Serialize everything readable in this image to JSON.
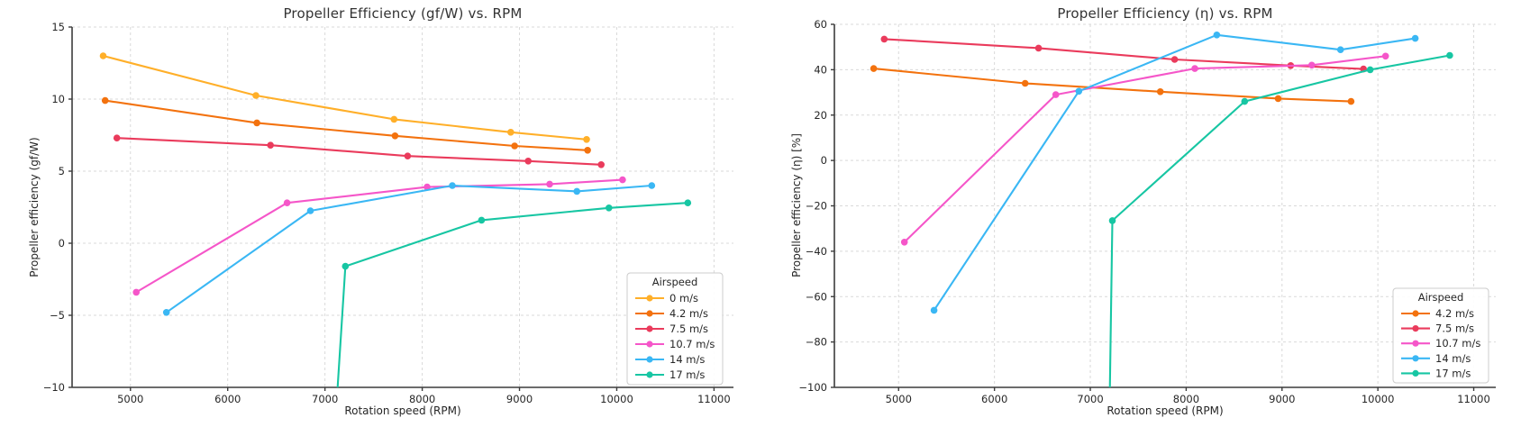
{
  "figure": {
    "background": "#ffffff",
    "grid_color": "#d9d9d9",
    "spine_color": "#3c3c3c",
    "text_color": "#262626"
  },
  "chart_data": [
    {
      "type": "line",
      "title": "Propeller Efficiency (gf/W) vs. RPM",
      "xlabel": "Rotation speed (RPM)",
      "ylabel": "Propeller efficiency (gf/W)",
      "xlim": [
        4400,
        11200
      ],
      "ylim": [
        -10,
        15
      ],
      "x_ticks": [
        5000,
        6000,
        7000,
        8000,
        9000,
        10000,
        11000
      ],
      "y_ticks": [
        -10,
        -5,
        0,
        5,
        10,
        15
      ],
      "grid": true,
      "legend": {
        "title": "Airspeed",
        "position": "lower right"
      },
      "series": [
        {
          "name": "0 m/s",
          "color": "#ffaf29",
          "points": [
            [
              4720,
              13.0
            ],
            [
              6290,
              10.25
            ],
            [
              7710,
              8.6
            ],
            [
              8910,
              7.7
            ],
            [
              9690,
              7.2
            ]
          ]
        },
        {
          "name": "4.2 m/s",
          "color": "#f3720e",
          "points": [
            [
              4740,
              9.9
            ],
            [
              6300,
              8.35
            ],
            [
              7720,
              7.45
            ],
            [
              8950,
              6.75
            ],
            [
              9700,
              6.45
            ]
          ]
        },
        {
          "name": "7.5 m/s",
          "color": "#ea3b5c",
          "points": [
            [
              4860,
              7.3
            ],
            [
              6440,
              6.8
            ],
            [
              7850,
              6.05
            ],
            [
              9090,
              5.7
            ],
            [
              9840,
              5.45
            ]
          ]
        },
        {
          "name": "10.7 m/s",
          "color": "#f556c9",
          "points": [
            [
              5060,
              -3.4
            ],
            [
              6610,
              2.8
            ],
            [
              8050,
              3.9
            ],
            [
              9310,
              4.1
            ],
            [
              10060,
              4.4
            ]
          ]
        },
        {
          "name": "14 m/s",
          "color": "#3ab7f4",
          "points": [
            [
              5370,
              -4.8
            ],
            [
              6850,
              2.25
            ],
            [
              8310,
              4.0
            ],
            [
              9590,
              3.6
            ],
            [
              10360,
              4.0
            ]
          ]
        },
        {
          "name": "17 m/s",
          "color": "#17c6a3",
          "clipped_start": true,
          "points": [
            [
              7100,
              -13.2
            ],
            [
              7210,
              -1.6
            ],
            [
              8610,
              1.6
            ],
            [
              9920,
              2.45
            ],
            [
              10730,
              2.8
            ]
          ]
        }
      ]
    },
    {
      "type": "line",
      "title": "Propeller Efficiency (η) vs. RPM",
      "xlabel": "Rotation speed (RPM)",
      "ylabel": "Propeller efficiency (η) [%]",
      "xlim": [
        4330,
        11230
      ],
      "ylim": [
        -100,
        60
      ],
      "x_ticks": [
        5000,
        6000,
        7000,
        8000,
        9000,
        10000,
        11000
      ],
      "y_ticks": [
        -100,
        -80,
        -60,
        -40,
        -20,
        0,
        20,
        40,
        60
      ],
      "grid": true,
      "legend": {
        "title": "Airspeed",
        "position": "lower right"
      },
      "series": [
        {
          "name": "4.2 m/s",
          "color": "#f3720e",
          "points": [
            [
              4740,
              40.5
            ],
            [
              6320,
              34
            ],
            [
              7730,
              30.3
            ],
            [
              8960,
              27.3
            ],
            [
              9720,
              26
            ]
          ]
        },
        {
          "name": "7.5 m/s",
          "color": "#ea3b5c",
          "points": [
            [
              4850,
              53.5
            ],
            [
              6460,
              49.5
            ],
            [
              7880,
              44.5
            ],
            [
              9090,
              41.8
            ],
            [
              9850,
              40.3
            ]
          ]
        },
        {
          "name": "10.7 m/s",
          "color": "#f556c9",
          "points": [
            [
              5060,
              -36
            ],
            [
              6640,
              29
            ],
            [
              8090,
              40.5
            ],
            [
              9310,
              42
            ],
            [
              10080,
              46
            ]
          ]
        },
        {
          "name": "14 m/s",
          "color": "#3ab7f4",
          "points": [
            [
              5370,
              -66
            ],
            [
              6880,
              30.5
            ],
            [
              8320,
              55.3
            ],
            [
              9610,
              48.8
            ],
            [
              10390,
              53.8
            ]
          ]
        },
        {
          "name": "17 m/s",
          "color": "#17c6a3",
          "clipped_start": true,
          "points": [
            [
              7200,
              -112
            ],
            [
              7230,
              -26.5
            ],
            [
              8610,
              26
            ],
            [
              9920,
              40
            ],
            [
              10750,
              46.3
            ]
          ]
        }
      ]
    }
  ]
}
